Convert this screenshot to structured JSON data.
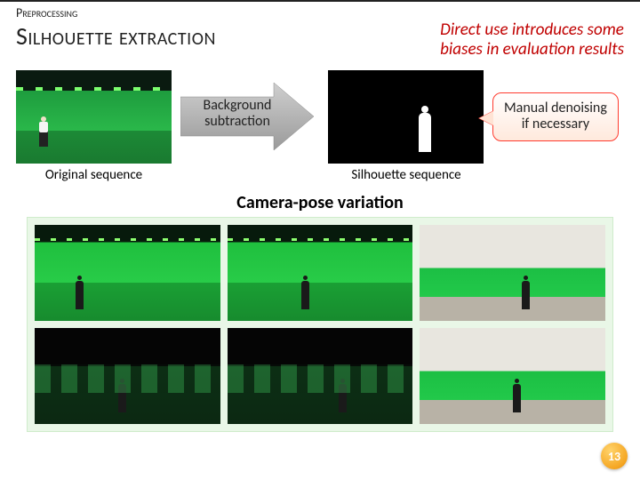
{
  "section_label": "Preprocessing",
  "title": "Silhouette extraction",
  "header_note_line1": "Direct use introduces some",
  "header_note_line2": "biases in evaluation results",
  "arrow_label_line1": "Background",
  "arrow_label_line2": "subtraction",
  "callout_line1": "Manual denoising",
  "callout_line2": "if necessary",
  "caption_original": "Original sequence",
  "caption_silhouette": "Silhouette sequence",
  "subsection_title": "Camera-pose variation",
  "page_number": "13",
  "colors": {
    "accent_red": "#c00000",
    "callout_border": "#ff3b2e",
    "green_light": "#28cc48",
    "green_dark": "#178b2e",
    "badge": "#f5a623"
  },
  "grid": {
    "rows": 2,
    "cols": 3,
    "scenes": [
      "green",
      "green",
      "room",
      "dark",
      "dark",
      "room"
    ],
    "person_left_pct": [
      22,
      40,
      55,
      45,
      60,
      50
    ]
  }
}
